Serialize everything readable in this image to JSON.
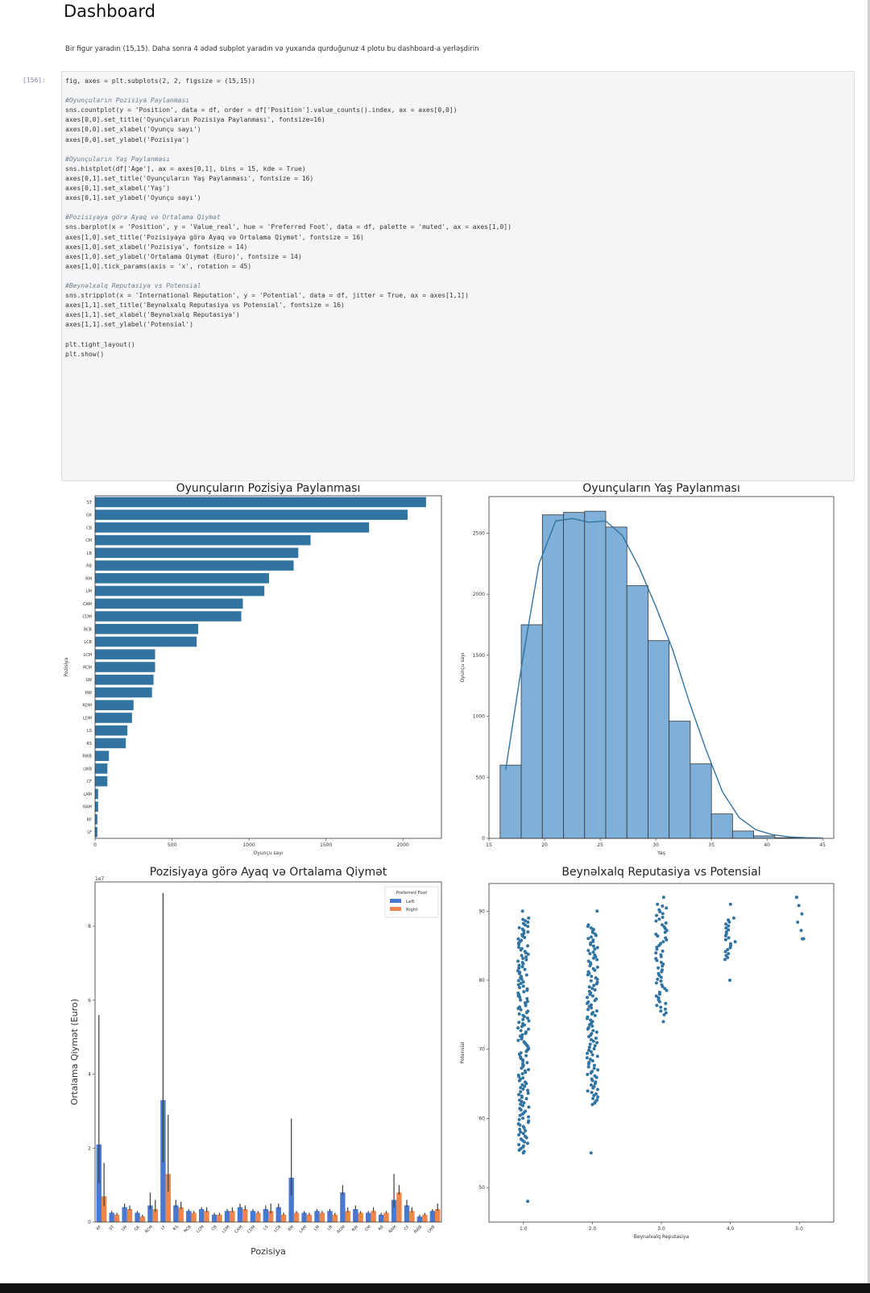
{
  "notebook": {
    "heading": "Dashboard",
    "description": "Bir figur yaradın (15,15). Daha sonra 4 ədəd subplot yaradın və yuxarıda qurduğunuz 4 plotu bu dashboard-a yerləşdirin",
    "execution_count": "[156]:"
  },
  "code": {
    "lines": [
      {
        "t": "fig, axes = plt.subplots(2, 2, figsize = (15,15))",
        "c": ""
      },
      {
        "t": "",
        "c": ""
      },
      {
        "t": "#Oyunçuların Pozisiya Paylanması",
        "c": "cmt"
      },
      {
        "t": "sns.countplot(y = 'Position', data = df, order = df['Position'].value_counts().index, ax = axes[0,0])",
        "c": ""
      },
      {
        "t": "axes[0,0].set_title('Oyunçuların Pozisiya Paylanması', fontsize=16)",
        "c": ""
      },
      {
        "t": "axes[0,0].set_xlabel('Oyunçu sayı')",
        "c": ""
      },
      {
        "t": "axes[0,0].set_ylabel('Pozisiya')",
        "c": ""
      },
      {
        "t": "",
        "c": ""
      },
      {
        "t": "#Oyunçuların Yaş Paylanması",
        "c": "cmt"
      },
      {
        "t": "sns.histplot(df['Age'], ax = axes[0,1], bins = 15, kde = True)",
        "c": ""
      },
      {
        "t": "axes[0,1].set_title('Oyunçuların Yaş Paylanması', fontsize = 16)",
        "c": ""
      },
      {
        "t": "axes[0,1].set_xlabel('Yaş')",
        "c": ""
      },
      {
        "t": "axes[0,1].set_ylabel('Oyunçu sayı')",
        "c": ""
      },
      {
        "t": "",
        "c": ""
      },
      {
        "t": "#Pozisiyaya görə Ayaq və Ortalama Qiymət",
        "c": "cmt"
      },
      {
        "t": "sns.barplot(x = 'Position', y = 'Value_real', hue = 'Preferred Foot', data = df, palette = 'muted', ax = axes[1,0])",
        "c": ""
      },
      {
        "t": "axes[1,0].set_title('Pozisiyaya görə Ayaq və Ortalama Qiymət', fontsize = 16)",
        "c": ""
      },
      {
        "t": "axes[1,0].set_xlabel('Pozisiya', fontsize = 14)",
        "c": ""
      },
      {
        "t": "axes[1,0].set_ylabel('Ortalama Qiymət (Euro)', fontsize = 14)",
        "c": ""
      },
      {
        "t": "axes[1,0].tick_params(axis = 'x', rotation = 45)",
        "c": ""
      },
      {
        "t": "",
        "c": ""
      },
      {
        "t": "#Beynəlxalq Reputasiya vs Potensial",
        "c": "cmt"
      },
      {
        "t": "sns.stripplot(x = 'International Reputation', y = 'Potential', data = df, jitter = True, ax = axes[1,1])",
        "c": ""
      },
      {
        "t": "axes[1,1].set_title('Beynəlxalq Reputasiya vs Potensial', fontsize = 16)",
        "c": ""
      },
      {
        "t": "axes[1,1].set_xlabel('Beynəlxalq Reputasiya')",
        "c": ""
      },
      {
        "t": "axes[1,1].set_ylabel('Potensial')",
        "c": ""
      },
      {
        "t": "",
        "c": ""
      },
      {
        "t": "plt.tight_layout()",
        "c": ""
      },
      {
        "t": "plt.show()",
        "c": ""
      }
    ]
  },
  "colors": {
    "blue": "#3274a1",
    "orange": "#e1812c",
    "muted_blue": "#4878d0",
    "muted_orange": "#ee854a",
    "hist_fill": "#7fb0d9"
  },
  "chart_data": [
    {
      "type": "bar",
      "orientation": "horizontal",
      "title": "Oyunçuların Pozisiya Paylanması",
      "xlabel": "Oyunçu sayı",
      "ylabel": "Pozisiya",
      "categories": [
        "ST",
        "GK",
        "CB",
        "CM",
        "LB",
        "RB",
        "RM",
        "LM",
        "CAM",
        "CDM",
        "RCB",
        "LCB",
        "LCM",
        "RCM",
        "LW",
        "RW",
        "RDM",
        "LDM",
        "LS",
        "RS",
        "RWB",
        "LWB",
        "CF",
        "LAM",
        "RAM",
        "RF",
        "LF"
      ],
      "values": [
        2150,
        2030,
        1780,
        1400,
        1320,
        1290,
        1130,
        1100,
        960,
        950,
        670,
        660,
        390,
        390,
        380,
        370,
        250,
        240,
        210,
        200,
        90,
        80,
        80,
        20,
        20,
        15,
        15
      ],
      "xlim": [
        0,
        2250
      ],
      "xticks": [
        0,
        500,
        1000,
        1500,
        2000
      ]
    },
    {
      "type": "bar",
      "subtype": "histogram",
      "title": "Oyunçuların Yaş Paylanması",
      "xlabel": "Yaş",
      "ylabel": "Oyunçu sayı",
      "bins": [
        [
          16,
          17.9
        ],
        [
          17.9,
          19.8
        ],
        [
          19.8,
          21.7
        ],
        [
          21.7,
          23.6
        ],
        [
          23.6,
          25.5
        ],
        [
          25.5,
          27.4
        ],
        [
          27.4,
          29.3
        ],
        [
          29.3,
          31.2
        ],
        [
          31.2,
          33.1
        ],
        [
          33.1,
          35
        ],
        [
          35,
          36.9
        ],
        [
          36.9,
          38.8
        ],
        [
          38.8,
          40.7
        ],
        [
          40.7,
          42.6
        ],
        [
          42.6,
          44.5
        ]
      ],
      "values": [
        600,
        1750,
        2650,
        2670,
        2680,
        2550,
        2070,
        1620,
        960,
        610,
        200,
        60,
        20,
        5,
        3
      ],
      "kde": {
        "x": [
          16.5,
          18,
          19.5,
          21,
          22.5,
          24,
          25.5,
          27,
          28.5,
          30,
          31.5,
          33,
          34.5,
          36,
          37.5,
          39,
          40.5,
          42,
          43.5,
          45
        ],
        "y": [
          560,
          1450,
          2250,
          2600,
          2620,
          2590,
          2600,
          2480,
          2220,
          1900,
          1550,
          1120,
          730,
          380,
          170,
          70,
          30,
          12,
          5,
          2
        ]
      },
      "xlim": [
        15,
        46
      ],
      "ylim": [
        0,
        2800
      ],
      "xticks": [
        15,
        20,
        25,
        30,
        35,
        40,
        45
      ],
      "yticks": [
        0,
        500,
        1000,
        1500,
        2000,
        2500
      ]
    },
    {
      "type": "bar",
      "title": "Pozisiyaya görə Ayaq və Ortalama Qiymət",
      "xlabel": "Pozisiya",
      "ylabel": "Ortalama Qiymət (Euro)",
      "scale_label": "1e7",
      "legend": {
        "title": "Preferred Foot",
        "placement": "top-right"
      },
      "categories": [
        "RF",
        "ST",
        "LW",
        "GK",
        "RCM",
        "LF",
        "RS",
        "RCB",
        "LCM",
        "CB",
        "LDM",
        "CAM",
        "CDM",
        "LS",
        "LCB",
        "RM",
        "LAM",
        "LM",
        "LB",
        "RDM",
        "RW",
        "CM",
        "RB",
        "RAM",
        "CF",
        "RWB",
        "LWB"
      ],
      "series": [
        {
          "name": "Left",
          "values": [
            2.1,
            0.25,
            0.4,
            0.25,
            0.45,
            3.3,
            0.45,
            0.3,
            0.35,
            0.2,
            0.3,
            0.4,
            0.3,
            0.35,
            0.4,
            1.2,
            0.25,
            0.3,
            0.3,
            0.8,
            0.35,
            0.25,
            0.2,
            0.6,
            0.45,
            0.15,
            0.3
          ],
          "err_hi": [
            5.6,
            0.3,
            0.5,
            0.3,
            0.8,
            8.9,
            0.6,
            0.35,
            0.4,
            0.25,
            0.35,
            0.5,
            0.35,
            0.45,
            0.5,
            2.8,
            0.3,
            0.35,
            0.35,
            1.0,
            0.45,
            0.3,
            0.25,
            1.3,
            0.6,
            0.2,
            0.35
          ]
        },
        {
          "name": "Right",
          "values": [
            0.7,
            0.2,
            0.35,
            0.15,
            0.35,
            1.3,
            0.4,
            0.25,
            0.3,
            0.2,
            0.3,
            0.35,
            0.25,
            0.3,
            0.2,
            0.25,
            0.2,
            0.25,
            0.2,
            0.3,
            0.25,
            0.3,
            0.25,
            0.8,
            0.3,
            0.2,
            0.35
          ],
          "err_hi": [
            1.6,
            0.25,
            0.45,
            0.2,
            0.6,
            2.9,
            0.55,
            0.3,
            0.4,
            0.25,
            0.4,
            0.45,
            0.3,
            0.5,
            0.25,
            0.3,
            0.25,
            0.3,
            0.25,
            0.4,
            0.3,
            0.4,
            0.3,
            1.0,
            0.4,
            0.25,
            0.5
          ]
        }
      ],
      "ylim": [
        0,
        9.2
      ],
      "yticks": [
        0,
        2,
        4,
        6,
        8
      ]
    },
    {
      "type": "scatter",
      "subtype": "strip",
      "title": "Beynəlxalq Reputasiya vs Potensial",
      "xlabel": "Beynəlxalq Reputasiya",
      "ylabel": "Potensial",
      "categories": [
        "1.0",
        "2.0",
        "3.0",
        "4.0",
        "5.0"
      ],
      "ranges": [
        {
          "x": "1.0",
          "min": 48,
          "max": 90,
          "dense_min": 55,
          "dense_max": 89
        },
        {
          "x": "2.0",
          "min": 55,
          "max": 90,
          "dense_min": 62,
          "dense_max": 88
        },
        {
          "x": "3.0",
          "min": 74,
          "max": 92,
          "dense_min": 75,
          "dense_max": 91
        },
        {
          "x": "4.0",
          "min": 80,
          "max": 91,
          "dense_min": 83,
          "dense_max": 89
        },
        {
          "x": "5.0",
          "min": 86,
          "max": 92,
          "dense_min": 86,
          "dense_max": 92
        }
      ],
      "ylim": [
        45,
        94
      ],
      "yticks": [
        50,
        60,
        70,
        80,
        90
      ]
    }
  ]
}
